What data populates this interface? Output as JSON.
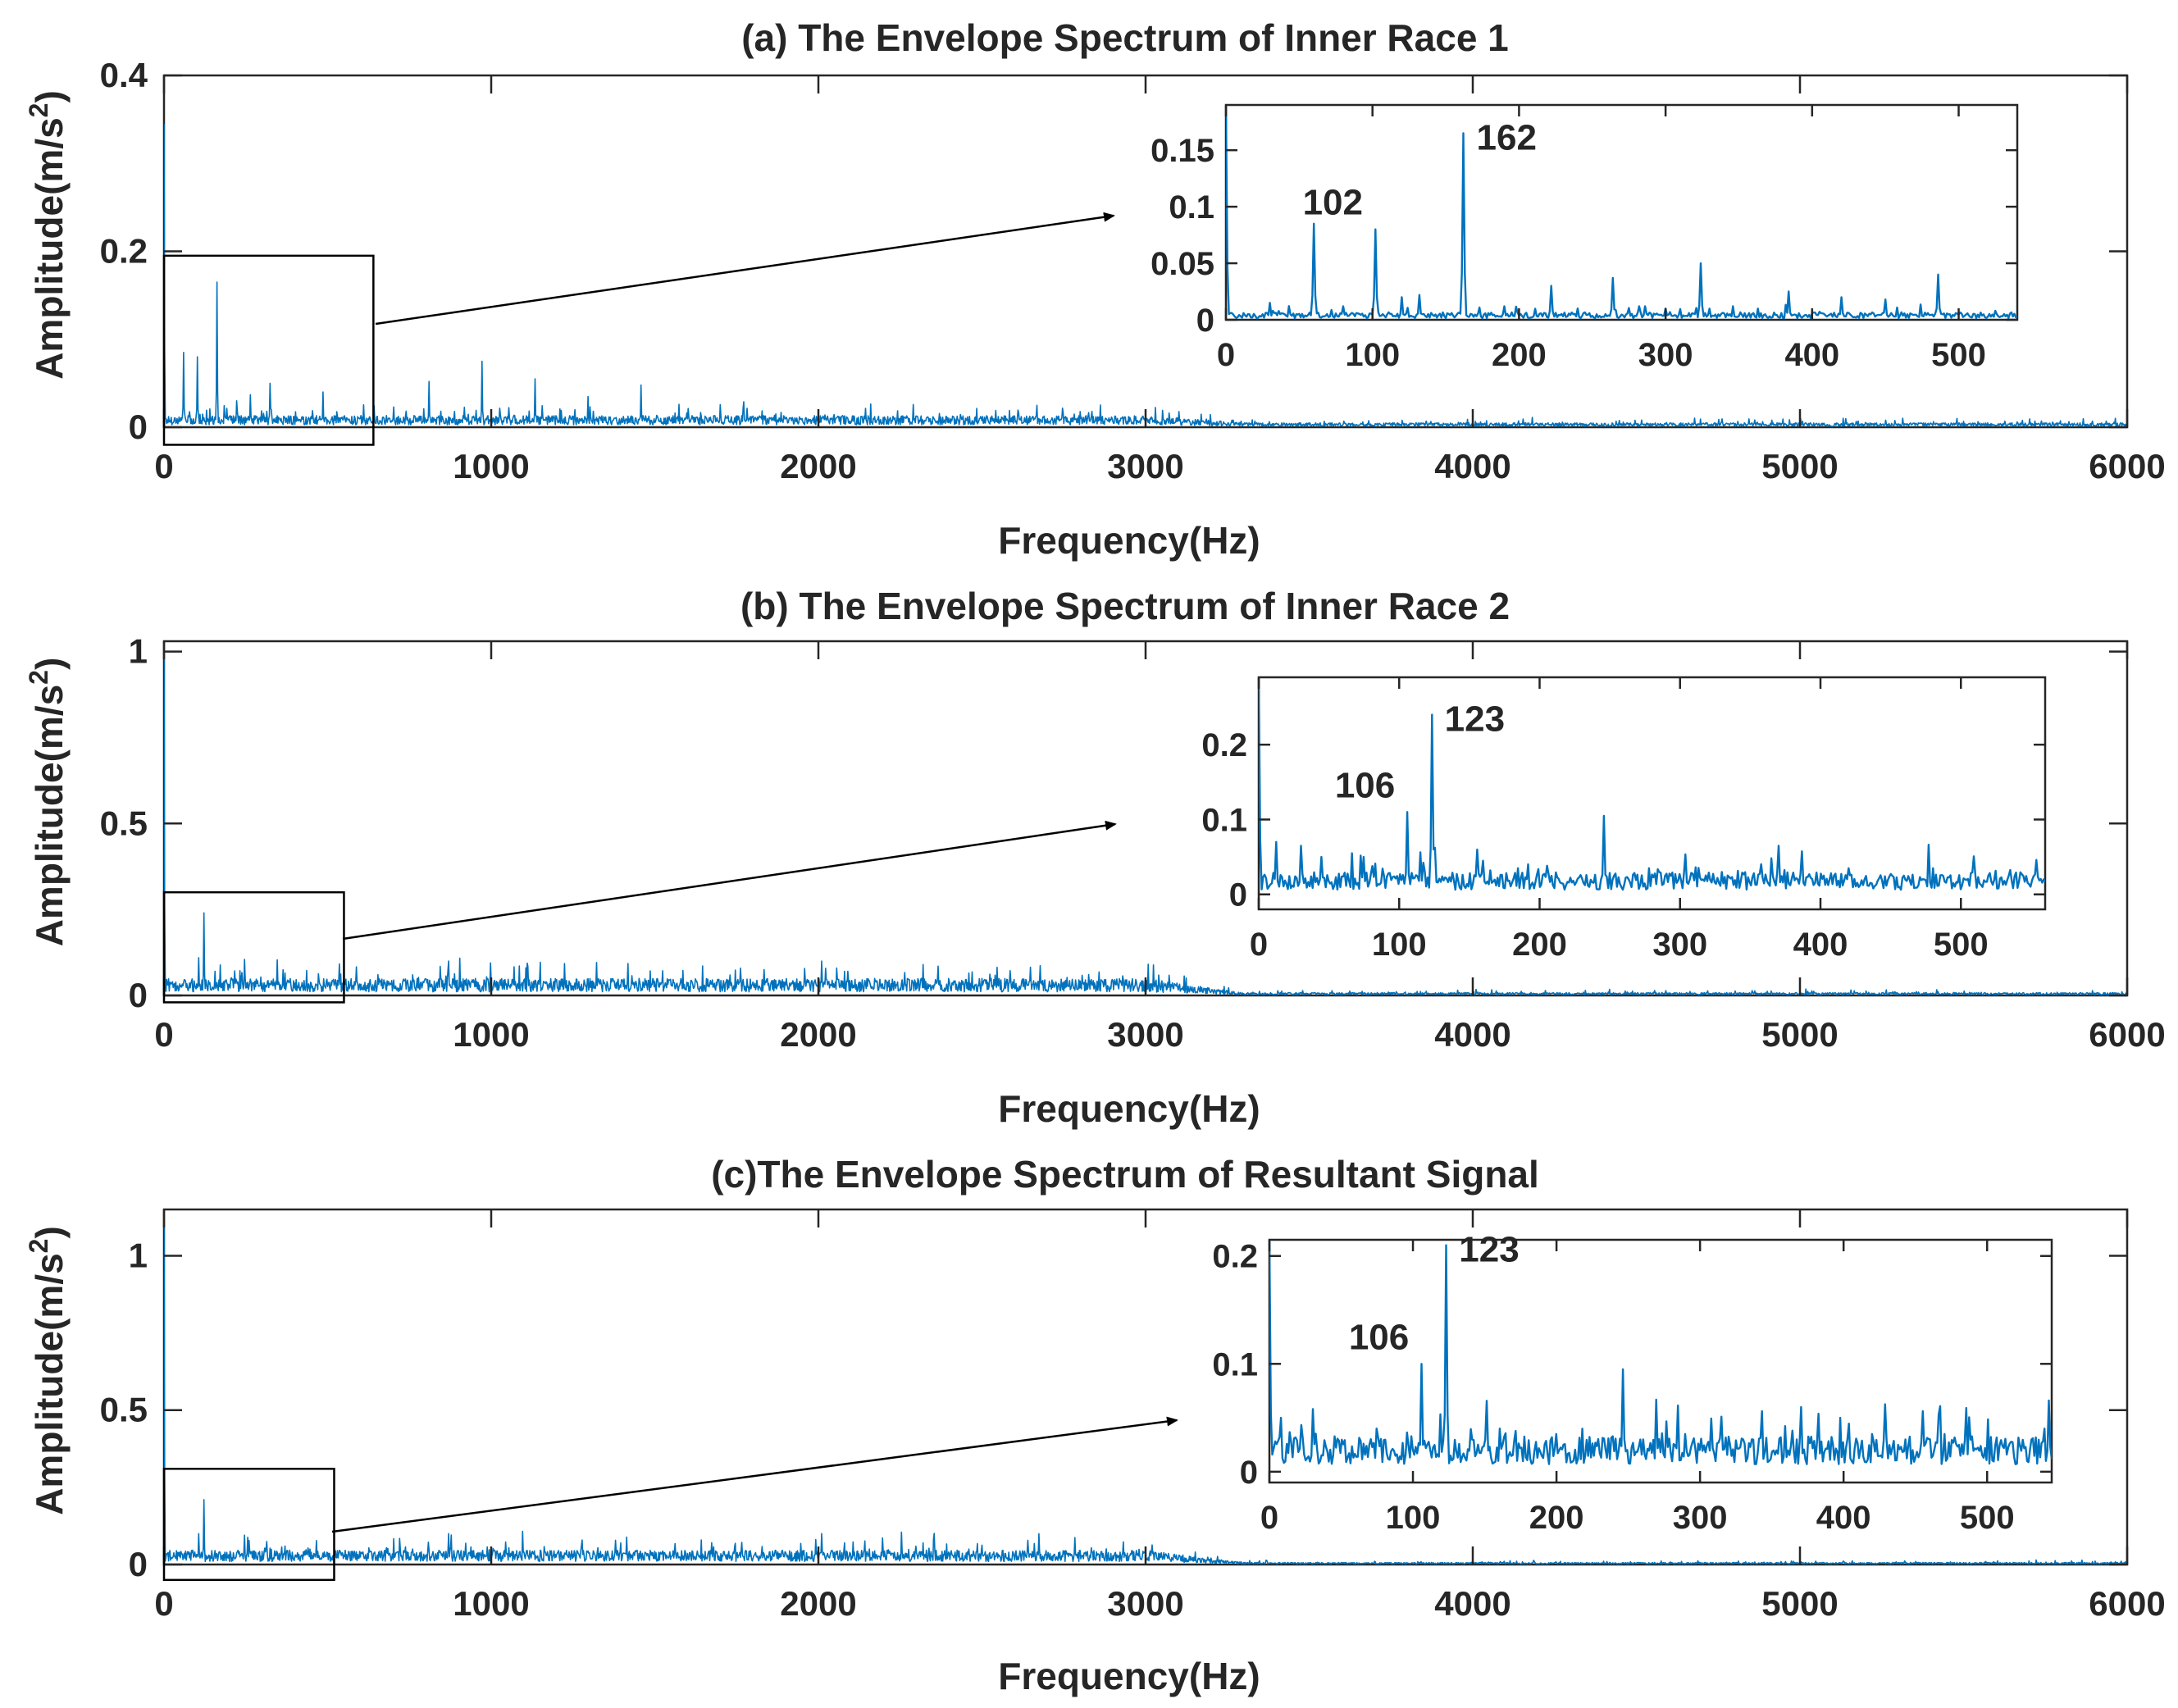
{
  "chart_data": [
    {
      "type": "line",
      "title": "(a) The Envelope Spectrum of Inner Race 1",
      "xlabel": "Frequency(Hz)",
      "ylabel": "Amplitude(m/s²)",
      "xlim": [
        0,
        6000
      ],
      "ylim": [
        0,
        0.4
      ],
      "xticks": [
        0,
        1000,
        2000,
        3000,
        4000,
        5000,
        6000
      ],
      "xtick_labels": [
        "0",
        "1000",
        "2000",
        "3000",
        "4000",
        "5000",
        "6000"
      ],
      "yticks": [
        0,
        0.2,
        0.4
      ],
      "ytick_labels": [
        "0",
        "0.2",
        "0.4"
      ],
      "color": "#0072BD",
      "series": [
        {
          "name": "envelope spectrum",
          "peaks": [
            {
              "x": 0,
              "y": 0.345
            },
            {
              "x": 60,
              "y": 0.085
            },
            {
              "x": 102,
              "y": 0.08
            },
            {
              "x": 162,
              "y": 0.165
            },
            {
              "x": 222,
              "y": 0.03
            },
            {
              "x": 264,
              "y": 0.037
            },
            {
              "x": 324,
              "y": 0.05
            },
            {
              "x": 486,
              "y": 0.04
            },
            {
              "x": 810,
              "y": 0.052
            },
            {
              "x": 972,
              "y": 0.075
            },
            {
              "x": 1134,
              "y": 0.055
            },
            {
              "x": 1296,
              "y": 0.035
            },
            {
              "x": 1458,
              "y": 0.048
            }
          ],
          "noise_floor_low": 0.008,
          "noise_floor_high": 0.003
        }
      ],
      "inset": {
        "xlim": [
          0,
          540
        ],
        "ylim": [
          0,
          0.19
        ],
        "xticks": [
          0,
          100,
          200,
          300,
          400,
          500
        ],
        "xtick_labels": [
          "0",
          "100",
          "200",
          "300",
          "400",
          "500"
        ],
        "yticks": [
          0,
          0.05,
          0.1,
          0.15
        ],
        "ytick_labels": [
          "0",
          "0.05",
          "0.1",
          "0.15"
        ],
        "zoom_region": {
          "xlim": [
            0,
            640
          ],
          "ylim": [
            -0.02,
            0.195
          ]
        },
        "peaks": [
          {
            "x": 0,
            "y": 0.19
          },
          {
            "x": 30,
            "y": 0.015
          },
          {
            "x": 60,
            "y": 0.085
          },
          {
            "x": 80,
            "y": 0.012
          },
          {
            "x": 102,
            "y": 0.08
          },
          {
            "x": 120,
            "y": 0.02
          },
          {
            "x": 132,
            "y": 0.022
          },
          {
            "x": 162,
            "y": 0.165
          },
          {
            "x": 190,
            "y": 0.012
          },
          {
            "x": 222,
            "y": 0.03
          },
          {
            "x": 240,
            "y": 0.01
          },
          {
            "x": 264,
            "y": 0.037
          },
          {
            "x": 282,
            "y": 0.012
          },
          {
            "x": 300,
            "y": 0.01
          },
          {
            "x": 324,
            "y": 0.05
          },
          {
            "x": 346,
            "y": 0.012
          },
          {
            "x": 384,
            "y": 0.025
          },
          {
            "x": 420,
            "y": 0.02
          },
          {
            "x": 450,
            "y": 0.018
          },
          {
            "x": 486,
            "y": 0.04
          },
          {
            "x": 525,
            "y": 0.008
          }
        ],
        "noise_floor": 0.004,
        "annotations": [
          {
            "text": "102",
            "x": 102,
            "y": 0.08
          },
          {
            "text": "162",
            "x": 162,
            "y": 0.165
          }
        ]
      }
    },
    {
      "type": "line",
      "title": "(b) The Envelope Spectrum of Inner Race 2",
      "xlabel": "Frequency(Hz)",
      "ylabel": "Amplitude(m/s²)",
      "xlim": [
        0,
        6000
      ],
      "ylim": [
        0,
        1.03
      ],
      "xticks": [
        0,
        1000,
        2000,
        3000,
        4000,
        5000,
        6000
      ],
      "xtick_labels": [
        "0",
        "1000",
        "2000",
        "3000",
        "4000",
        "5000",
        "6000"
      ],
      "yticks": [
        0,
        0.5,
        1
      ],
      "ytick_labels": [
        "0",
        "0.5",
        "1"
      ],
      "color": "#0072BD",
      "series": [
        {
          "name": "envelope spectrum",
          "peaks": [
            {
              "x": 0,
              "y": 1.02
            },
            {
              "x": 106,
              "y": 0.11
            },
            {
              "x": 123,
              "y": 0.24
            },
            {
              "x": 246,
              "y": 0.105
            },
            {
              "x": 370,
              "y": 0.065
            },
            {
              "x": 760,
              "y": 0.06
            },
            {
              "x": 870,
              "y": 0.1
            },
            {
              "x": 1100,
              "y": 0.045
            },
            {
              "x": 1500,
              "y": 0.04
            },
            {
              "x": 2010,
              "y": 0.1
            },
            {
              "x": 2080,
              "y": 0.07
            },
            {
              "x": 2320,
              "y": 0.09
            },
            {
              "x": 2460,
              "y": 0.065
            },
            {
              "x": 3000,
              "y": 0.05
            }
          ],
          "noise_floor_low": 0.03,
          "noise_floor_high": 0.005
        }
      ],
      "inset": {
        "xlim": [
          0,
          560
        ],
        "ylim": [
          -0.02,
          0.29
        ],
        "xticks": [
          0,
          100,
          200,
          300,
          400,
          500
        ],
        "xtick_labels": [
          "0",
          "100",
          "200",
          "300",
          "400",
          "500"
        ],
        "yticks": [
          0,
          0.1,
          0.2
        ],
        "ytick_labels": [
          "0",
          "0.1",
          "0.2"
        ],
        "zoom_region": {
          "xlim": [
            0,
            550
          ],
          "ylim": [
            -0.02,
            0.3
          ]
        },
        "peaks": [
          {
            "x": 0,
            "y": 0.29
          },
          {
            "x": 12,
            "y": 0.07
          },
          {
            "x": 30,
            "y": 0.065
          },
          {
            "x": 45,
            "y": 0.05
          },
          {
            "x": 75,
            "y": 0.05
          },
          {
            "x": 106,
            "y": 0.11
          },
          {
            "x": 123,
            "y": 0.24
          },
          {
            "x": 160,
            "y": 0.045
          },
          {
            "x": 185,
            "y": 0.035
          },
          {
            "x": 246,
            "y": 0.105
          },
          {
            "x": 285,
            "y": 0.03
          },
          {
            "x": 330,
            "y": 0.03
          },
          {
            "x": 370,
            "y": 0.065
          },
          {
            "x": 420,
            "y": 0.035
          },
          {
            "x": 480,
            "y": 0.035
          },
          {
            "x": 520,
            "y": 0.025
          }
        ],
        "noise_floor": 0.018,
        "annotations": [
          {
            "text": "106",
            "x": 106,
            "y": 0.11
          },
          {
            "text": "123",
            "x": 123,
            "y": 0.24
          }
        ]
      }
    },
    {
      "type": "line",
      "title": "(c)The Envelope Spectrum of Resultant Signal",
      "xlabel": "Frequency(Hz)",
      "ylabel": "Amplitude(m/s²)",
      "xlim": [
        0,
        6000
      ],
      "ylim": [
        0,
        1.15
      ],
      "xticks": [
        0,
        1000,
        2000,
        3000,
        4000,
        5000,
        6000
      ],
      "xtick_labels": [
        "0",
        "1000",
        "2000",
        "3000",
        "4000",
        "5000",
        "6000"
      ],
      "yticks": [
        0,
        0.5,
        1
      ],
      "ytick_labels": [
        "0",
        "0.5",
        "1"
      ],
      "color": "#0072BD",
      "series": [
        {
          "name": "envelope spectrum",
          "peaks": [
            {
              "x": 0,
              "y": 1.15
            },
            {
              "x": 106,
              "y": 0.1
            },
            {
              "x": 123,
              "y": 0.21
            },
            {
              "x": 246,
              "y": 0.095
            },
            {
              "x": 370,
              "y": 0.06
            },
            {
              "x": 760,
              "y": 0.05
            },
            {
              "x": 870,
              "y": 0.1
            },
            {
              "x": 1100,
              "y": 0.04
            },
            {
              "x": 2010,
              "y": 0.1
            },
            {
              "x": 2080,
              "y": 0.07
            },
            {
              "x": 2320,
              "y": 0.07
            },
            {
              "x": 2460,
              "y": 0.05
            },
            {
              "x": 3000,
              "y": 0.05
            }
          ],
          "noise_floor_low": 0.028,
          "noise_floor_high": 0.004
        }
      ],
      "inset": {
        "xlim": [
          0,
          545
        ],
        "ylim": [
          -0.01,
          0.215
        ],
        "xticks": [
          0,
          100,
          200,
          300,
          400,
          500
        ],
        "xtick_labels": [
          "0",
          "100",
          "200",
          "300",
          "400",
          "500"
        ],
        "yticks": [
          0,
          0.1,
          0.2
        ],
        "ytick_labels": [
          "0",
          "0.1",
          "0.2"
        ],
        "zoom_region": {
          "xlim": [
            0,
            520
          ],
          "ylim": [
            -0.05,
            0.31
          ]
        },
        "peaks": [
          {
            "x": 0,
            "y": 0.215
          },
          {
            "x": 8,
            "y": 0.05
          },
          {
            "x": 30,
            "y": 0.058
          },
          {
            "x": 75,
            "y": 0.04
          },
          {
            "x": 106,
            "y": 0.1
          },
          {
            "x": 123,
            "y": 0.21
          },
          {
            "x": 160,
            "y": 0.04
          },
          {
            "x": 200,
            "y": 0.035
          },
          {
            "x": 246,
            "y": 0.095
          },
          {
            "x": 290,
            "y": 0.035
          },
          {
            "x": 330,
            "y": 0.03
          },
          {
            "x": 370,
            "y": 0.06
          },
          {
            "x": 420,
            "y": 0.035
          },
          {
            "x": 470,
            "y": 0.035
          },
          {
            "x": 540,
            "y": 0.04
          }
        ],
        "noise_floor": 0.02,
        "annotations": [
          {
            "text": "106",
            "x": 106,
            "y": 0.1
          },
          {
            "text": "123",
            "x": 123,
            "y": 0.21
          }
        ]
      }
    }
  ]
}
